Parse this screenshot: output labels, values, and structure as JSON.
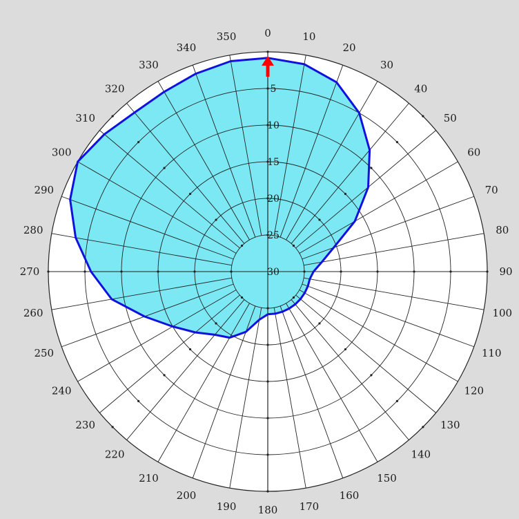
{
  "chart_data": {
    "type": "polar-area",
    "title": "",
    "angular_axis": {
      "units": "degrees",
      "direction": "clockwise",
      "zero_position": "top",
      "tick_labels": [
        "0",
        "10",
        "20",
        "30",
        "40",
        "50",
        "60",
        "70",
        "80",
        "90",
        "100",
        "110",
        "120",
        "130",
        "140",
        "150",
        "160",
        "170",
        "180",
        "190",
        "200",
        "210",
        "220",
        "230",
        "240",
        "250",
        "260",
        "270",
        "280",
        "290",
        "300",
        "310",
        "320",
        "330",
        "340",
        "350"
      ]
    },
    "radial_axis": {
      "direction": "inward",
      "range": [
        0,
        30
      ],
      "tick_labels": [
        "5",
        "10",
        "15",
        "20",
        "25",
        "30"
      ],
      "label_bearing": 0
    },
    "series": [
      {
        "type": "filled-region",
        "fill_color": "#7be8f3",
        "outline_color": "#1111dd",
        "bearings": [
          0,
          10,
          20,
          30,
          40,
          50,
          60,
          70,
          80,
          90,
          100,
          110,
          120,
          130,
          140,
          150,
          160,
          170,
          180,
          190,
          200,
          210,
          220,
          230,
          240,
          250,
          260,
          270,
          280,
          290,
          300,
          310,
          320,
          330,
          340,
          350
        ],
        "values": [
          1,
          1.5,
          3,
          6,
          10,
          14.5,
          19.5,
          24.5,
          27,
          28.5,
          29,
          29,
          29,
          29,
          29,
          29,
          29,
          29,
          29,
          28,
          25.5,
          23.5,
          22.5,
          20.5,
          18,
          14.5,
          10,
          7,
          4,
          1.5,
          0,
          1,
          2,
          2,
          1.5,
          1
        ]
      }
    ],
    "annotations": [
      {
        "type": "arrow",
        "bearing": 0,
        "color": "#ff0000"
      }
    ],
    "grid": true,
    "background_color": "#ffffff",
    "frame_color": "#dcdcdc"
  }
}
